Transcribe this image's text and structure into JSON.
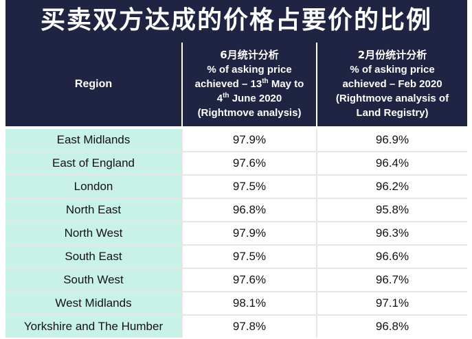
{
  "title": "买卖双方达成的价格占要价的比例",
  "header": {
    "region_label": "Region",
    "col_june": {
      "line1": "6月统计分析",
      "line2": "% of asking price",
      "line3_pre": "achieved – 13",
      "line3_sup": "th",
      "line3_post": " May to",
      "line4_pre": "4",
      "line4_sup": "th",
      "line4_post": " June 2020",
      "line5": "(Rightmove analysis)"
    },
    "col_feb": {
      "line1": "2月份统计分析",
      "line2": "% of asking price",
      "line3": "achieved – Feb 2020",
      "line4": "(Rightmove analysis of",
      "line5": "Land Registry)"
    }
  },
  "rows": [
    {
      "region": "East Midlands",
      "june": "97.9%",
      "feb": "96.9%"
    },
    {
      "region": "East of England",
      "june": "97.6%",
      "feb": "96.4%"
    },
    {
      "region": "London",
      "june": "97.5%",
      "feb": "96.2%"
    },
    {
      "region": "North East",
      "june": "96.8%",
      "feb": "95.8%"
    },
    {
      "region": "North West",
      "june": "97.9%",
      "feb": "96.3%"
    },
    {
      "region": "South East",
      "june": "97.5%",
      "feb": "96.6%"
    },
    {
      "region": "South West",
      "june": "97.6%",
      "feb": "96.7%"
    },
    {
      "region": "West Midlands",
      "june": "98.1%",
      "feb": "97.1%"
    },
    {
      "region": "Yorkshire and The Humber",
      "june": "97.8%",
      "feb": "96.8%"
    }
  ],
  "colors": {
    "header_bg": "#1f2442",
    "region_bg": "#c8f2e8",
    "value_bg": "#ffffff",
    "text": "#111111"
  }
}
